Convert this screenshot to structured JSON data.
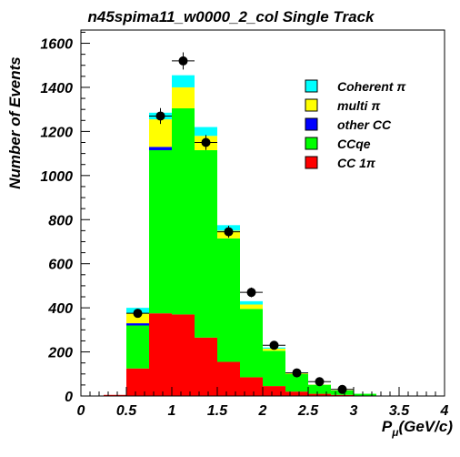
{
  "chart_data": {
    "type": "bar",
    "stacked": true,
    "title": "n45spima11_w0000_2_col Single Track",
    "xlabel": "P_μ(GeV/c)",
    "xlabel_main": "P",
    "xlabel_sub": "μ",
    "xlabel_rest": "(GeV/c)",
    "ylabel": "Number of Events",
    "xlim": [
      0,
      4
    ],
    "ylim": [
      0,
      1660
    ],
    "bin_width": 0.25,
    "bins": [
      0.25,
      0.5,
      0.75,
      1.0,
      1.25,
      1.5,
      1.75,
      2.0,
      2.25,
      2.5,
      2.75,
      3.0,
      3.25,
      3.5,
      3.75
    ],
    "x_ticks": [
      "0",
      "0.5",
      "1",
      "1.5",
      "2",
      "2.5",
      "3",
      "3.5",
      "4"
    ],
    "y_ticks": [
      "0",
      "200",
      "400",
      "600",
      "800",
      "1000",
      "1200",
      "1400",
      "1600"
    ],
    "grid": false,
    "legend_position": "top-right",
    "series": [
      {
        "name": "CC 1π",
        "color": "#ff0000",
        "values": [
          5,
          125,
          375,
          370,
          265,
          155,
          85,
          45,
          20,
          10,
          5,
          2,
          0,
          0,
          0
        ]
      },
      {
        "name": "CCqe",
        "color": "#00ff00",
        "values": [
          0,
          195,
          740,
          935,
          850,
          560,
          310,
          160,
          80,
          40,
          20,
          8,
          0,
          0,
          0
        ]
      },
      {
        "name": "other CC",
        "color": "#0000ff",
        "values": [
          0,
          10,
          15,
          0,
          0,
          0,
          0,
          0,
          0,
          0,
          0,
          0,
          0,
          0,
          0
        ]
      },
      {
        "name": "multi π",
        "color": "#ffff00",
        "values": [
          0,
          45,
          125,
          95,
          65,
          35,
          20,
          10,
          5,
          2,
          1,
          0,
          0,
          0,
          0
        ]
      },
      {
        "name": "Coherent π",
        "color": "#00ffff",
        "values": [
          0,
          25,
          30,
          55,
          40,
          25,
          15,
          5,
          2,
          1,
          0,
          0,
          0,
          0,
          0
        ]
      }
    ],
    "data_points": {
      "x": [
        0.625,
        0.875,
        1.125,
        1.375,
        1.625,
        1.875,
        2.125,
        2.375,
        2.625,
        2.875
      ],
      "y": [
        375,
        1270,
        1520,
        1150,
        745,
        470,
        230,
        105,
        65,
        30
      ],
      "yerr": [
        19,
        36,
        39,
        34,
        27,
        22,
        15,
        10,
        8,
        6
      ]
    },
    "legend_order": [
      "Coherent π",
      "multi π",
      "other CC",
      "CCqe",
      "CC 1π"
    ]
  }
}
